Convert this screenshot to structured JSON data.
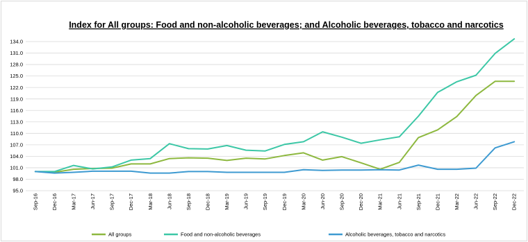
{
  "chart_data": {
    "type": "line",
    "title": "Index for All groups: Food and non-alcoholic beverages; and Alcoholic beverages, tobacco and narcotics",
    "xlabel": "",
    "ylabel": "",
    "ylim": [
      95.0,
      134.0
    ],
    "yticks": [
      "95.0",
      "98.0",
      "101.0",
      "104.0",
      "107.0",
      "110.0",
      "113.0",
      "116.0",
      "119.0",
      "122.0",
      "125.0",
      "128.0",
      "131.0",
      "134.0"
    ],
    "grid": true,
    "legend_position": "bottom",
    "x": [
      "Sep-16",
      "Dec-16",
      "Mar-17",
      "Jun-17",
      "Sep-17",
      "Dec-17",
      "Mar-18",
      "Jun-18",
      "Sep-18",
      "Dec-18",
      "Mar-19",
      "Jun-19",
      "Sep-19",
      "Dec-19",
      "Mar-20",
      "Jun-20",
      "Sep-20",
      "Dec-20",
      "Mar-21",
      "Jun-21",
      "Sep-21",
      "Dec-21",
      "Mar-22",
      "Jun-22",
      "Sep-22",
      "Dec-22"
    ],
    "series": [
      {
        "name": "All groups",
        "color": "#8DB83F",
        "values": [
          100.0,
          99.8,
          100.6,
          100.8,
          100.9,
          102.0,
          102.0,
          103.4,
          103.6,
          103.5,
          102.9,
          103.5,
          103.3,
          104.2,
          104.9,
          103.0,
          103.9,
          102.3,
          100.6,
          102.4,
          108.9,
          110.9,
          114.4,
          119.9,
          123.6,
          123.6
        ]
      },
      {
        "name": "Food and non-alcoholic beverages",
        "color": "#3CC7A6",
        "values": [
          100.0,
          100.0,
          101.6,
          100.7,
          101.2,
          103.0,
          103.4,
          107.3,
          106.0,
          105.9,
          106.8,
          105.6,
          105.4,
          107.1,
          107.8,
          110.4,
          109.0,
          107.4,
          108.3,
          109.1,
          114.5,
          120.7,
          123.5,
          125.2,
          130.9,
          134.7
        ]
      },
      {
        "name": "Alcoholic beverages, tobacco and narcotics",
        "color": "#3D9AD1",
        "values": [
          100.0,
          99.6,
          99.8,
          100.1,
          100.1,
          100.1,
          99.6,
          99.6,
          100.0,
          100.0,
          99.8,
          99.8,
          99.8,
          99.8,
          100.5,
          100.3,
          100.4,
          100.4,
          100.5,
          100.4,
          101.7,
          100.6,
          100.6,
          100.9,
          106.2,
          107.8
        ]
      }
    ]
  }
}
